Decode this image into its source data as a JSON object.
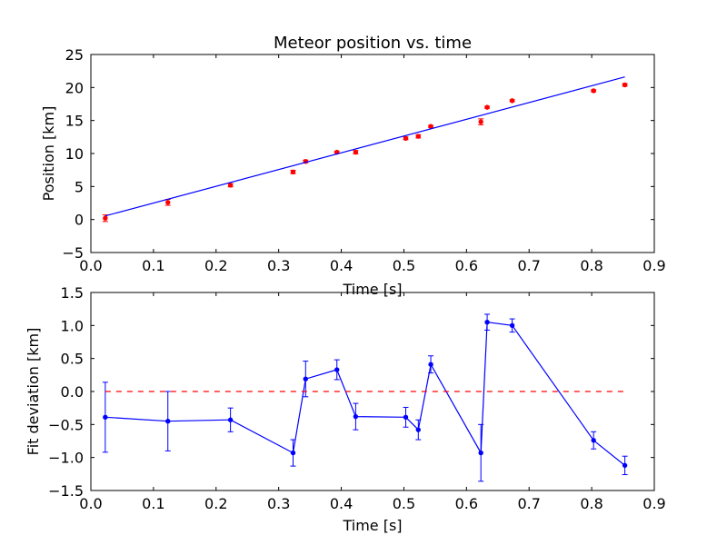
{
  "chart_data": [
    {
      "type": "scatter",
      "title": "Meteor position vs. time",
      "xlabel": "Time [s]",
      "ylabel": "Position [km]",
      "xlim": [
        0.0,
        0.9
      ],
      "ylim": [
        -5,
        25
      ],
      "xticks": [
        "0.0",
        "0.1",
        "0.2",
        "0.3",
        "0.4",
        "0.5",
        "0.6",
        "0.7",
        "0.8",
        "0.9"
      ],
      "yticks": [
        "−5",
        "0",
        "5",
        "10",
        "15",
        "20",
        "25"
      ],
      "xtick_values": [
        0.0,
        0.1,
        0.2,
        0.3,
        0.4,
        0.5,
        0.6,
        0.7,
        0.8,
        0.9
      ],
      "ytick_values": [
        -5,
        0,
        5,
        10,
        15,
        20,
        25
      ],
      "grid": false,
      "series": [
        {
          "style": "points-with-errorbars",
          "color": "#ff0000",
          "x": [
            0.023,
            0.123,
            0.223,
            0.323,
            0.343,
            0.393,
            0.423,
            0.503,
            0.523,
            0.543,
            0.623,
            0.633,
            0.673,
            0.803,
            0.853
          ],
          "y": [
            0.2,
            2.6,
            5.2,
            7.2,
            8.8,
            10.2,
            10.2,
            12.3,
            12.6,
            14.1,
            14.8,
            17.0,
            18.0,
            19.5,
            20.4
          ],
          "yerr": [
            0.5,
            0.45,
            0.25,
            0.25,
            0.2,
            0.15,
            0.25,
            0.2,
            0.25,
            0.15,
            0.45,
            0.15,
            0.15,
            0.15,
            0.2
          ]
        },
        {
          "style": "line",
          "color": "#0000ff",
          "x": [
            0.023,
            0.853
          ],
          "y": [
            0.55,
            21.6
          ]
        }
      ]
    },
    {
      "type": "line",
      "xlabel": "Time [s]",
      "ylabel": "Fit deviation [km]",
      "xlim": [
        0.0,
        0.9
      ],
      "ylim": [
        -1.5,
        1.5
      ],
      "xticks": [
        "0.0",
        "0.1",
        "0.2",
        "0.3",
        "0.4",
        "0.5",
        "0.6",
        "0.7",
        "0.8",
        "0.9"
      ],
      "yticks": [
        "−1.5",
        "−1.0",
        "−0.5",
        "0.0",
        "0.5",
        "1.0",
        "1.5"
      ],
      "xtick_values": [
        0.0,
        0.1,
        0.2,
        0.3,
        0.4,
        0.5,
        0.6,
        0.7,
        0.8,
        0.9
      ],
      "ytick_values": [
        -1.5,
        -1.0,
        -0.5,
        0.0,
        0.5,
        1.0,
        1.5
      ],
      "grid": false,
      "series": [
        {
          "style": "line-points-with-errorbars",
          "color": "#0000ff",
          "x": [
            0.023,
            0.123,
            0.223,
            0.323,
            0.343,
            0.393,
            0.423,
            0.503,
            0.523,
            0.543,
            0.623,
            0.633,
            0.673,
            0.803,
            0.853
          ],
          "y": [
            -0.39,
            -0.45,
            -0.43,
            -0.93,
            0.19,
            0.33,
            -0.38,
            -0.39,
            -0.58,
            0.41,
            -0.93,
            1.05,
            1.0,
            -0.74,
            -1.12
          ],
          "yerr": [
            0.53,
            0.45,
            0.18,
            0.2,
            0.27,
            0.15,
            0.2,
            0.15,
            0.15,
            0.13,
            0.43,
            0.12,
            0.1,
            0.13,
            0.14
          ]
        },
        {
          "style": "dashed-line",
          "color": "#ff0000",
          "x": [
            0.023,
            0.853
          ],
          "y": [
            0.0,
            0.0
          ]
        }
      ]
    }
  ]
}
